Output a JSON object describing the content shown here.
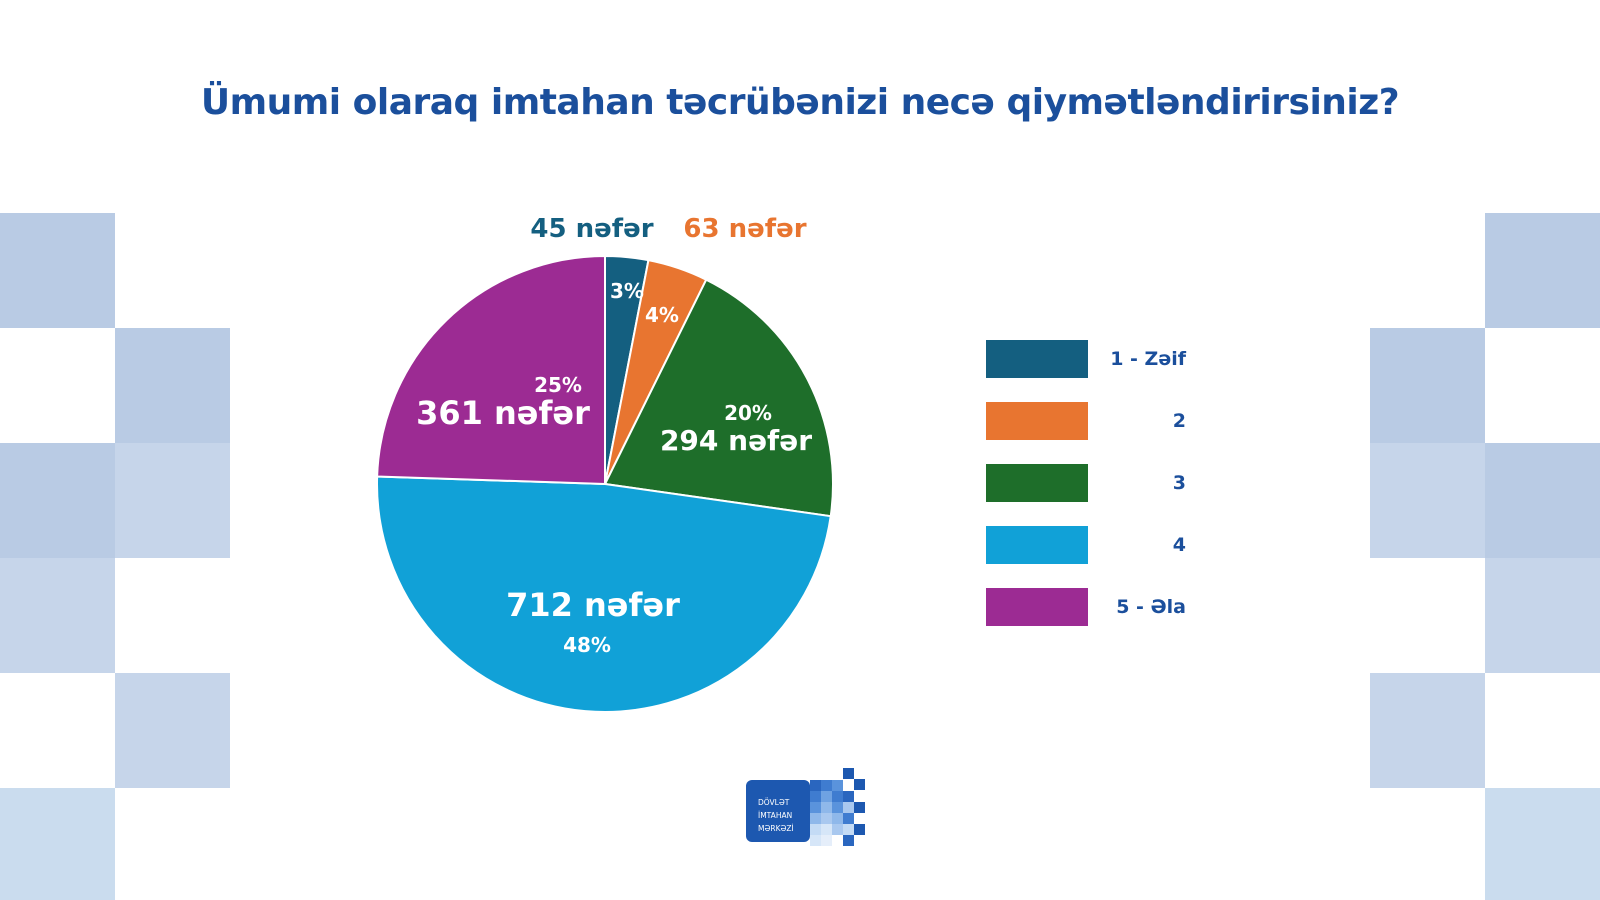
{
  "title": "Ümumi olaraq imtahan təcrübənizi necə qiymətləndirirsiniz?",
  "chart_data": {
    "type": "pie",
    "title": "Ümumi olaraq imtahan təcrübənizi necə qiymətləndirirsiniz?",
    "slices": [
      {
        "label": "1 - Zəif",
        "count_label": "45 nəfər",
        "percent_label": "3%",
        "value": 45,
        "color": "#145f80"
      },
      {
        "label": "2",
        "count_label": "63 nəfər",
        "percent_label": "4%",
        "value": 63,
        "color": "#e87530"
      },
      {
        "label": "3",
        "count_label": "294 nəfər",
        "percent_label": "20%",
        "value": 294,
        "color": "#1e6e2a"
      },
      {
        "label": "4",
        "count_label": "712 nəfər",
        "percent_label": "48%",
        "value": 712,
        "color": "#11a1d7"
      },
      {
        "label": "5 - Əla",
        "count_label": "361 nəfər",
        "percent_label": "25%",
        "value": 361,
        "color": "#9c2b93"
      }
    ],
    "legend": "right"
  },
  "logo": {
    "lines": [
      "DÖVLƏT",
      "İMTAHAN",
      "MƏRKƏZİ"
    ]
  },
  "colors": {
    "title": "#1b4f9c",
    "deco_dark": "#b9cbe4",
    "deco_light": "#cadcee"
  }
}
